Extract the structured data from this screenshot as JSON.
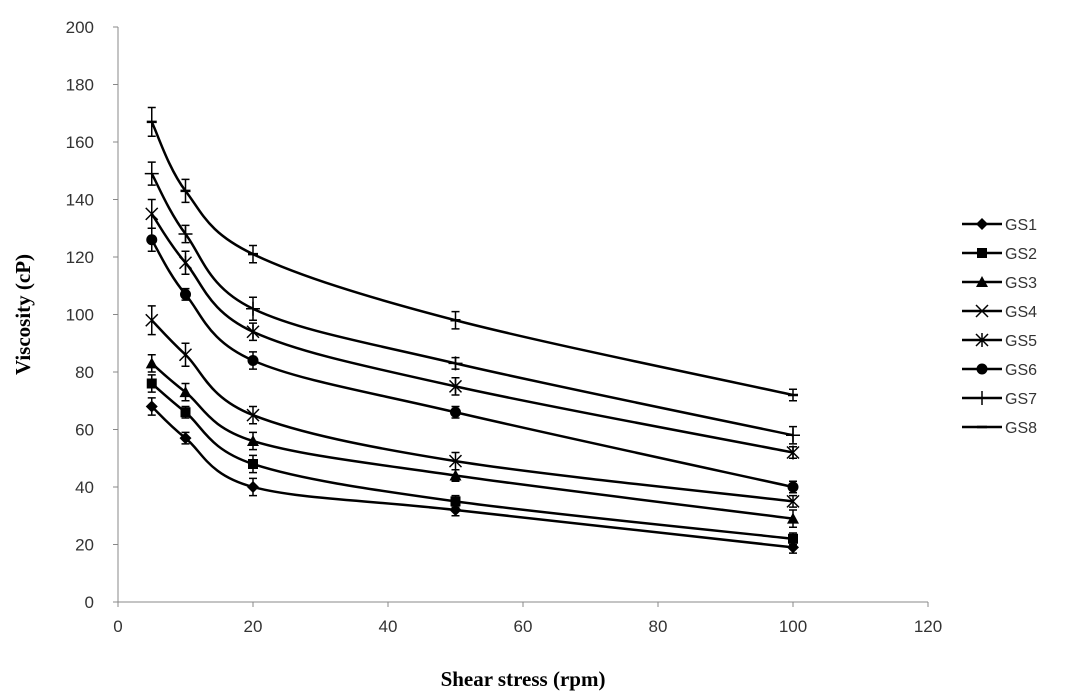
{
  "chart_data": {
    "type": "line",
    "title": "",
    "xlabel": "Shear stress (rpm)",
    "ylabel": "Viscosity (cP)",
    "xlim": [
      0,
      120
    ],
    "ylim": [
      0,
      200
    ],
    "x_ticks": [
      "0",
      "20",
      "40",
      "60",
      "80",
      "100",
      "120"
    ],
    "y_ticks": [
      "0",
      "20",
      "40",
      "60",
      "80",
      "100",
      "120",
      "140",
      "160",
      "180",
      "200"
    ],
    "grid": false,
    "legend_position": "right",
    "line_color": "#000000",
    "x": [
      5,
      10,
      20,
      50,
      100
    ],
    "series": [
      {
        "name": "GS1",
        "marker": "diamond",
        "values": [
          68,
          57,
          40,
          32,
          19
        ],
        "errors": [
          3,
          2,
          3,
          2,
          2
        ]
      },
      {
        "name": "GS2",
        "marker": "square",
        "values": [
          76,
          66,
          48,
          35,
          22
        ],
        "errors": [
          3,
          2,
          3,
          2,
          2
        ]
      },
      {
        "name": "GS3",
        "marker": "triangle",
        "values": [
          83,
          73,
          56,
          44,
          29
        ],
        "errors": [
          3,
          3,
          3,
          2,
          3
        ]
      },
      {
        "name": "GS4",
        "marker": "x",
        "values": [
          98,
          86,
          65,
          49,
          35
        ],
        "errors": [
          5,
          4,
          3,
          3,
          2
        ]
      },
      {
        "name": "GS5",
        "marker": "star",
        "values": [
          135,
          118,
          94,
          75,
          52
        ],
        "errors": [
          5,
          4,
          3,
          3,
          2
        ]
      },
      {
        "name": "GS6",
        "marker": "circle",
        "values": [
          126,
          107,
          84,
          66,
          40
        ],
        "errors": [
          4,
          2,
          3,
          2,
          2
        ]
      },
      {
        "name": "GS7",
        "marker": "plus",
        "values": [
          149,
          128,
          102,
          83,
          58
        ],
        "errors": [
          4,
          3,
          4,
          2,
          3
        ]
      },
      {
        "name": "GS8",
        "marker": "dash",
        "values": [
          167,
          143,
          121,
          98,
          72
        ],
        "errors": [
          5,
          4,
          3,
          3,
          2
        ]
      }
    ]
  }
}
